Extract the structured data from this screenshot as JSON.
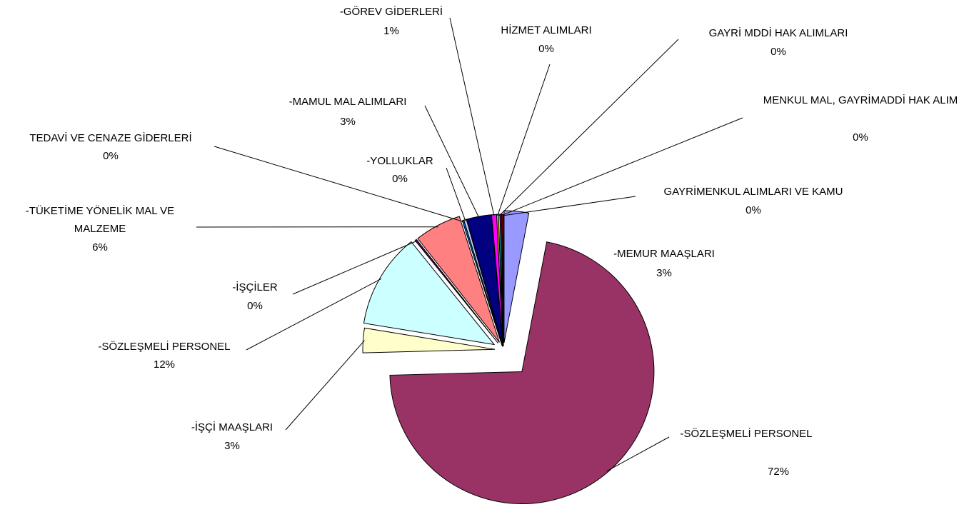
{
  "chart_data": {
    "type": "pie",
    "categories": [
      "-MEMUR MAAŞLARI",
      "-SÖZLEŞMELİ PERSONEL",
      "-İŞÇİ MAAŞLARI",
      "-SÖZLEŞMELİ PERSONEL",
      "-İŞÇİLER",
      "-TÜKETİME YÖNELİK MAL VE MALZEME",
      "TEDAVİ VE CENAZE GİDERLERİ",
      "-YOLLUKLAR",
      "-MAMUL MAL ALIMLARI",
      "-GÖREV GİDERLERİ",
      "HİZMET ALIMLARI",
      "GAYRİ MDDİ HAK ALIMLARI",
      "MENKUL MAL, GAYRİMADDİ HAK ALIM",
      "GAYRİMENKUL ALIMLARI VE KAMU"
    ],
    "values": [
      3,
      71.5,
      3,
      11.6,
      0.2,
      5.7,
      0.2,
      0.3,
      3,
      0.6,
      0.2,
      0.2,
      0.2,
      0.2
    ],
    "value_labels": [
      "3%",
      "72%",
      "3%",
      "12%",
      "0%",
      "6%",
      "0%",
      "0%",
      "3%",
      "1%",
      "0%",
      "0%",
      "0%",
      "0%"
    ],
    "colors": [
      "#9999ff",
      "#993366",
      "#ffffcc",
      "#ccffff",
      "#660066",
      "#ff8080",
      "#0066cc",
      "#ccccff",
      "#000080",
      "#ff00ff",
      "#ffff00",
      "#00ffff",
      "#800080",
      "#800000"
    ]
  }
}
